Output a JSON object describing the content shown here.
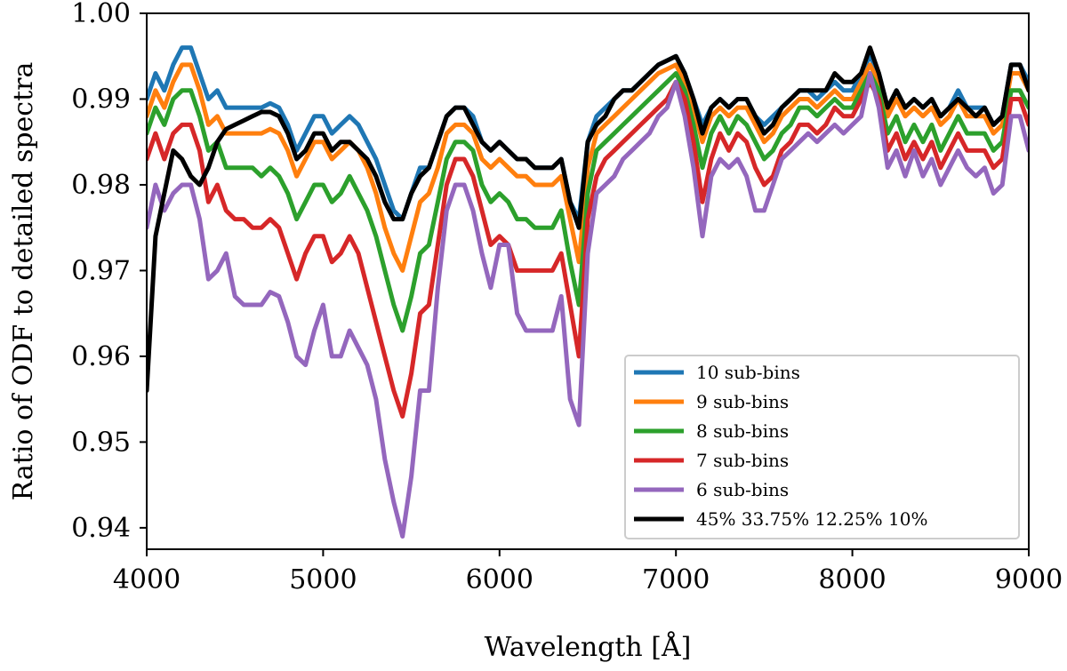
{
  "chart_data": {
    "type": "line",
    "title": "",
    "xlabel": "Wavelength [Å]",
    "ylabel": "Ratio of ODF to detailed spectra",
    "xlim": [
      4000,
      9000
    ],
    "ylim": [
      0.9375,
      1.0
    ],
    "xticks": [
      4000,
      5000,
      6000,
      7000,
      8000,
      9000
    ],
    "xtick_labels": [
      "4000",
      "5000",
      "6000",
      "7000",
      "8000",
      "9000"
    ],
    "yticks": [
      0.94,
      0.95,
      0.96,
      0.97,
      0.98,
      0.99,
      1.0
    ],
    "ytick_labels": [
      "0.94",
      "0.95",
      "0.96",
      "0.97",
      "0.98",
      "0.99",
      "1.00"
    ],
    "grid": false,
    "legend_position": "bottom-right",
    "x": [
      4000,
      4050,
      4100,
      4150,
      4200,
      4250,
      4300,
      4350,
      4400,
      4450,
      4500,
      4550,
      4600,
      4650,
      4700,
      4750,
      4800,
      4850,
      4900,
      4950,
      5000,
      5050,
      5100,
      5150,
      5200,
      5250,
      5300,
      5350,
      5400,
      5450,
      5500,
      5550,
      5600,
      5650,
      5700,
      5750,
      5800,
      5850,
      5900,
      5950,
      6000,
      6050,
      6100,
      6150,
      6200,
      6250,
      6300,
      6350,
      6400,
      6450,
      6500,
      6550,
      6600,
      6650,
      6700,
      6750,
      6800,
      6850,
      6900,
      6950,
      7000,
      7050,
      7100,
      7150,
      7200,
      7250,
      7300,
      7350,
      7400,
      7450,
      7500,
      7550,
      7600,
      7650,
      7700,
      7750,
      7800,
      7850,
      7900,
      7950,
      8000,
      8050,
      8100,
      8150,
      8200,
      8250,
      8300,
      8350,
      8400,
      8450,
      8500,
      8550,
      8600,
      8650,
      8700,
      8750,
      8800,
      8850,
      8900,
      8950,
      9000
    ],
    "series": [
      {
        "name": "10 sub-bins",
        "color": "#1f77b4",
        "values": [
          0.99,
          0.993,
          0.991,
          0.994,
          0.996,
          0.996,
          0.993,
          0.99,
          0.991,
          0.989,
          0.989,
          0.989,
          0.989,
          0.989,
          0.9895,
          0.989,
          0.987,
          0.984,
          0.986,
          0.988,
          0.988,
          0.986,
          0.987,
          0.988,
          0.987,
          0.985,
          0.983,
          0.98,
          0.977,
          0.976,
          0.979,
          0.982,
          0.982,
          0.985,
          0.988,
          0.989,
          0.989,
          0.988,
          0.985,
          0.984,
          0.985,
          0.984,
          0.983,
          0.983,
          0.982,
          0.982,
          0.982,
          0.983,
          0.978,
          0.976,
          0.985,
          0.988,
          0.989,
          0.99,
          0.991,
          0.991,
          0.992,
          0.993,
          0.994,
          0.9945,
          0.995,
          0.993,
          0.99,
          0.987,
          0.989,
          0.99,
          0.989,
          0.99,
          0.99,
          0.988,
          0.987,
          0.988,
          0.989,
          0.99,
          0.991,
          0.991,
          0.99,
          0.991,
          0.992,
          0.991,
          0.991,
          0.993,
          0.995,
          0.993,
          0.989,
          0.991,
          0.989,
          0.99,
          0.989,
          0.99,
          0.988,
          0.989,
          0.991,
          0.989,
          0.989,
          0.989,
          0.987,
          0.988,
          0.994,
          0.994,
          0.992
        ]
      },
      {
        "name": "9 sub-bins",
        "color": "#ff7f0e",
        "values": [
          0.988,
          0.991,
          0.989,
          0.992,
          0.994,
          0.994,
          0.991,
          0.987,
          0.988,
          0.986,
          0.986,
          0.986,
          0.986,
          0.986,
          0.9865,
          0.986,
          0.984,
          0.981,
          0.983,
          0.985,
          0.985,
          0.983,
          0.984,
          0.985,
          0.984,
          0.982,
          0.979,
          0.975,
          0.972,
          0.97,
          0.974,
          0.978,
          0.979,
          0.982,
          0.986,
          0.987,
          0.987,
          0.986,
          0.983,
          0.982,
          0.983,
          0.982,
          0.981,
          0.981,
          0.98,
          0.98,
          0.98,
          0.981,
          0.976,
          0.971,
          0.982,
          0.986,
          0.987,
          0.988,
          0.989,
          0.99,
          0.991,
          0.992,
          0.993,
          0.9935,
          0.994,
          0.992,
          0.989,
          0.985,
          0.988,
          0.989,
          0.988,
          0.989,
          0.989,
          0.987,
          0.985,
          0.986,
          0.988,
          0.989,
          0.99,
          0.99,
          0.989,
          0.99,
          0.991,
          0.99,
          0.99,
          0.992,
          0.994,
          0.992,
          0.988,
          0.99,
          0.988,
          0.989,
          0.988,
          0.989,
          0.987,
          0.988,
          0.99,
          0.988,
          0.988,
          0.988,
          0.986,
          0.987,
          0.993,
          0.993,
          0.991
        ]
      },
      {
        "name": "8 sub-bins",
        "color": "#2ca02c",
        "values": [
          0.986,
          0.989,
          0.987,
          0.99,
          0.991,
          0.991,
          0.988,
          0.984,
          0.985,
          0.982,
          0.982,
          0.982,
          0.982,
          0.981,
          0.982,
          0.981,
          0.979,
          0.976,
          0.978,
          0.98,
          0.98,
          0.978,
          0.979,
          0.981,
          0.979,
          0.977,
          0.974,
          0.97,
          0.966,
          0.963,
          0.967,
          0.972,
          0.973,
          0.978,
          0.983,
          0.985,
          0.985,
          0.984,
          0.98,
          0.978,
          0.979,
          0.978,
          0.976,
          0.976,
          0.975,
          0.975,
          0.975,
          0.977,
          0.971,
          0.966,
          0.979,
          0.984,
          0.985,
          0.986,
          0.987,
          0.988,
          0.989,
          0.99,
          0.991,
          0.992,
          0.993,
          0.991,
          0.987,
          0.982,
          0.986,
          0.988,
          0.986,
          0.988,
          0.987,
          0.985,
          0.983,
          0.984,
          0.986,
          0.987,
          0.989,
          0.989,
          0.988,
          0.989,
          0.99,
          0.989,
          0.989,
          0.991,
          0.993,
          0.991,
          0.986,
          0.988,
          0.985,
          0.987,
          0.985,
          0.987,
          0.984,
          0.986,
          0.988,
          0.986,
          0.986,
          0.986,
          0.984,
          0.985,
          0.991,
          0.991,
          0.989
        ]
      },
      {
        "name": "7 sub-bins",
        "color": "#d62728",
        "values": [
          0.983,
          0.986,
          0.983,
          0.986,
          0.987,
          0.987,
          0.984,
          0.978,
          0.98,
          0.977,
          0.976,
          0.976,
          0.975,
          0.975,
          0.976,
          0.975,
          0.972,
          0.969,
          0.972,
          0.974,
          0.974,
          0.971,
          0.972,
          0.974,
          0.972,
          0.968,
          0.964,
          0.96,
          0.956,
          0.953,
          0.958,
          0.965,
          0.966,
          0.973,
          0.98,
          0.983,
          0.983,
          0.981,
          0.977,
          0.973,
          0.974,
          0.973,
          0.97,
          0.97,
          0.97,
          0.97,
          0.97,
          0.972,
          0.966,
          0.96,
          0.976,
          0.981,
          0.983,
          0.984,
          0.985,
          0.986,
          0.987,
          0.988,
          0.989,
          0.99,
          0.992,
          0.99,
          0.985,
          0.978,
          0.983,
          0.986,
          0.984,
          0.986,
          0.985,
          0.982,
          0.98,
          0.981,
          0.984,
          0.985,
          0.987,
          0.987,
          0.986,
          0.987,
          0.989,
          0.988,
          0.988,
          0.99,
          0.992,
          0.99,
          0.984,
          0.986,
          0.983,
          0.985,
          0.983,
          0.985,
          0.982,
          0.984,
          0.986,
          0.984,
          0.984,
          0.984,
          0.982,
          0.983,
          0.99,
          0.99,
          0.987
        ]
      },
      {
        "name": "6 sub-bins",
        "color": "#9467bd",
        "values": [
          0.975,
          0.98,
          0.977,
          0.979,
          0.98,
          0.98,
          0.976,
          0.969,
          0.97,
          0.972,
          0.967,
          0.966,
          0.966,
          0.966,
          0.9675,
          0.967,
          0.964,
          0.96,
          0.959,
          0.963,
          0.966,
          0.96,
          0.96,
          0.963,
          0.961,
          0.959,
          0.955,
          0.948,
          0.943,
          0.939,
          0.946,
          0.956,
          0.956,
          0.968,
          0.977,
          0.98,
          0.98,
          0.977,
          0.972,
          0.968,
          0.973,
          0.973,
          0.965,
          0.963,
          0.963,
          0.963,
          0.963,
          0.967,
          0.955,
          0.952,
          0.972,
          0.979,
          0.98,
          0.981,
          0.983,
          0.984,
          0.985,
          0.986,
          0.988,
          0.989,
          0.992,
          0.988,
          0.982,
          0.974,
          0.981,
          0.983,
          0.982,
          0.983,
          0.981,
          0.977,
          0.977,
          0.98,
          0.983,
          0.984,
          0.985,
          0.986,
          0.985,
          0.986,
          0.987,
          0.986,
          0.987,
          0.988,
          0.993,
          0.989,
          0.982,
          0.984,
          0.981,
          0.984,
          0.981,
          0.983,
          0.98,
          0.982,
          0.984,
          0.982,
          0.981,
          0.982,
          0.979,
          0.98,
          0.988,
          0.988,
          0.984
        ]
      },
      {
        "name": "45% 33.75% 12.25% 10%",
        "color": "#000000",
        "values": [
          0.956,
          0.974,
          0.979,
          0.984,
          0.983,
          0.981,
          0.98,
          0.982,
          0.985,
          0.9865,
          0.987,
          0.9875,
          0.988,
          0.9885,
          0.9885,
          0.988,
          0.986,
          0.983,
          0.984,
          0.986,
          0.986,
          0.984,
          0.985,
          0.985,
          0.984,
          0.983,
          0.981,
          0.978,
          0.976,
          0.976,
          0.979,
          0.981,
          0.982,
          0.985,
          0.988,
          0.989,
          0.989,
          0.987,
          0.985,
          0.984,
          0.985,
          0.984,
          0.983,
          0.983,
          0.982,
          0.982,
          0.982,
          0.983,
          0.978,
          0.975,
          0.985,
          0.987,
          0.988,
          0.99,
          0.991,
          0.991,
          0.992,
          0.993,
          0.994,
          0.9945,
          0.995,
          0.993,
          0.99,
          0.986,
          0.989,
          0.99,
          0.989,
          0.99,
          0.99,
          0.988,
          0.986,
          0.987,
          0.989,
          0.99,
          0.991,
          0.991,
          0.991,
          0.991,
          0.993,
          0.992,
          0.992,
          0.993,
          0.996,
          0.993,
          0.989,
          0.991,
          0.989,
          0.99,
          0.989,
          0.99,
          0.988,
          0.989,
          0.99,
          0.989,
          0.988,
          0.989,
          0.987,
          0.988,
          0.994,
          0.994,
          0.991
        ]
      }
    ]
  }
}
